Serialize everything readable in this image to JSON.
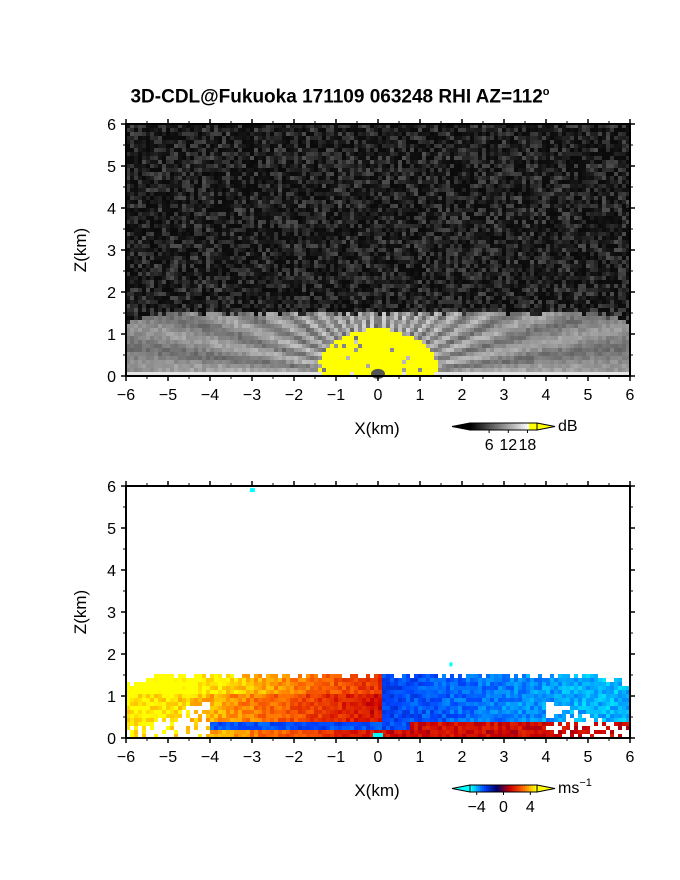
{
  "title": "3D-CDL@Fukuoka 171109 063248 RHI AZ=112",
  "title_degree": "o",
  "chart_data": [
    {
      "type": "heatmap",
      "quantity": "reflectivity",
      "xlabel": "X(km)",
      "ylabel": "Z(km)",
      "xlim": [
        -6,
        6
      ],
      "ylim": [
        0,
        6
      ],
      "xticks": [
        "−6",
        "−5",
        "−4",
        "−3",
        "−2",
        "−1",
        "0",
        "1",
        "2",
        "3",
        "4",
        "5",
        "6"
      ],
      "yticks": [
        "0",
        "1",
        "2",
        "3",
        "4",
        "5",
        "6"
      ],
      "colorbar": {
        "unit": "dB",
        "ticks": [
          "6",
          "12",
          "18"
        ],
        "range": [
          0,
          21
        ],
        "colors": [
          "#000000",
          "#ffffff",
          "#ffff00"
        ]
      },
      "features": {
        "noise_above_km": 1.5,
        "saturated_center_color": "#ffff00",
        "saturated_center_halfwidth_km": 1.6
      }
    },
    {
      "type": "heatmap",
      "quantity": "doppler_velocity",
      "xlabel": "X(km)",
      "ylabel": "Z(km)",
      "xlim": [
        -6,
        6
      ],
      "ylim": [
        0,
        6
      ],
      "xticks": [
        "−6",
        "−5",
        "−4",
        "−3",
        "−2",
        "−1",
        "0",
        "1",
        "2",
        "3",
        "4",
        "5",
        "6"
      ],
      "yticks": [
        "0",
        "1",
        "2",
        "3",
        "4",
        "5",
        "6"
      ],
      "colorbar": {
        "unit": "ms",
        "unit_exp": "−1",
        "ticks": [
          "−4",
          "0",
          "4"
        ],
        "range": [
          -5,
          5
        ],
        "colors": [
          "#00ffff",
          "#0044ff",
          "#000066",
          "#cc0000",
          "#ff6600",
          "#ffff00"
        ]
      },
      "features": {
        "echo_top_km": 1.5,
        "left_sign": "positive",
        "right_sign": "negative"
      }
    }
  ]
}
